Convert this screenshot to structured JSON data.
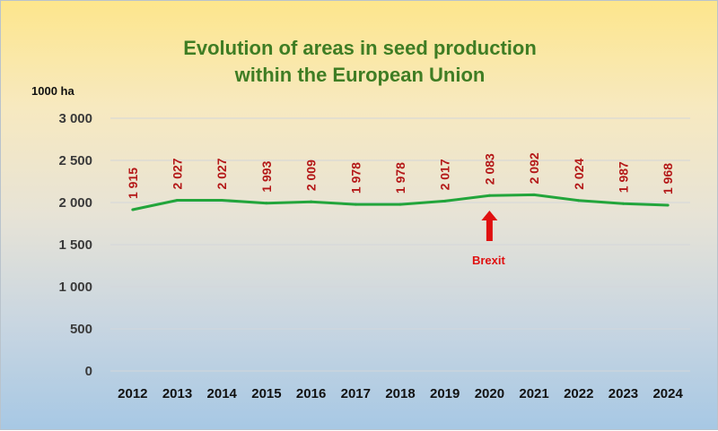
{
  "chart_data": {
    "type": "line",
    "title_line1": "Evolution of areas in seed production",
    "title_line2": "within the European Union",
    "ylabel": "1000 ha",
    "xlabel": "",
    "categories": [
      "2012",
      "2013",
      "2014",
      "2015",
      "2016",
      "2017",
      "2018",
      "2019",
      "2020",
      "2021",
      "2022",
      "2023",
      "2024"
    ],
    "series": [
      {
        "values": [
          1915,
          2027,
          2027,
          1993,
          2009,
          1978,
          1978,
          2017,
          2083,
          2092,
          2024,
          1987,
          1968
        ]
      }
    ],
    "data_labels": [
      "1 915",
      "2 027",
      "2 027",
      "1 993",
      "2 009",
      "1 978",
      "1 978",
      "2 017",
      "2 083",
      "2 092",
      "2 024",
      "1 987",
      "1 968"
    ],
    "ylim": [
      0,
      3000
    ],
    "yticks": [
      0,
      500,
      1000,
      1500,
      2000,
      2500,
      3000
    ],
    "ytick_labels": [
      "0",
      "500",
      "1 000",
      "1 500",
      "2 000",
      "2 500",
      "3 000"
    ],
    "grid": true,
    "line_color": "#22a53b",
    "label_color": "#b41818",
    "annotation": {
      "text": "Brexit",
      "category": "2020",
      "color": "#e01010"
    }
  }
}
